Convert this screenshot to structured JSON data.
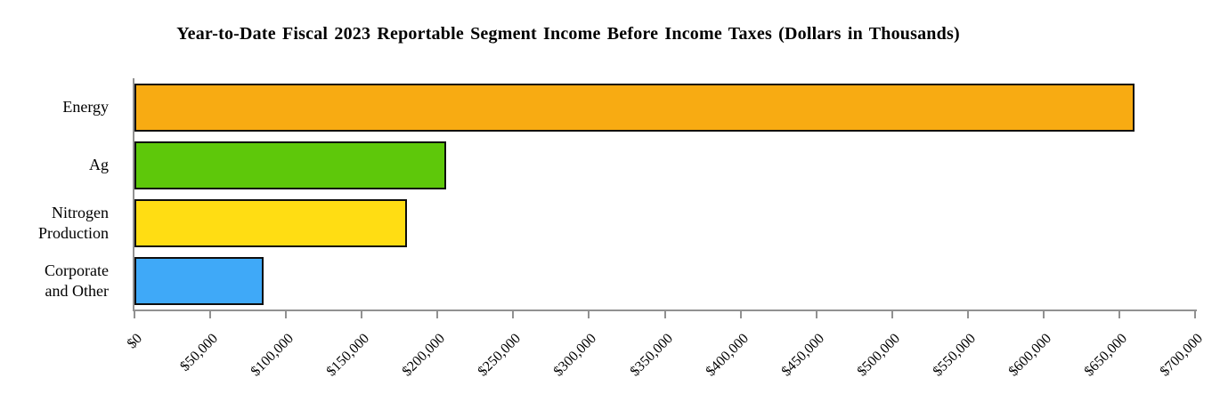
{
  "chart_data": {
    "type": "bar",
    "orientation": "horizontal",
    "title": "Year-to-Date Fiscal 2023 Reportable Segment Income Before Income Taxes (Dollars in Thousands)",
    "categories": [
      "Energy",
      "Ag",
      "Nitrogen Production",
      "Corporate and Other"
    ],
    "category_label_lines": [
      [
        "Energy"
      ],
      [
        "Ag"
      ],
      [
        "Nitrogen",
        "Production"
      ],
      [
        "Corporate",
        "and Other"
      ]
    ],
    "values": [
      660000,
      206000,
      180000,
      85000
    ],
    "value_labels": [
      "$660,000",
      "$206,000",
      "$180,000",
      "$85,000"
    ],
    "bar_colors": [
      "#F8AB12",
      "#5EC80A",
      "#FFDD13",
      "#3FA9F8"
    ],
    "bar_border_color": "#0d0d0d",
    "axis_color": "#919191",
    "xlabel": "",
    "ylabel": "",
    "xlim": [
      0,
      700000
    ],
    "x_ticks": [
      {
        "label": "$0",
        "value": 0
      },
      {
        "label": "$50,000",
        "value": 50000
      },
      {
        "label": "$100,000",
        "value": 100000
      },
      {
        "label": "$150,000",
        "value": 150000
      },
      {
        "label": "$200,000",
        "value": 200000
      },
      {
        "label": "$250,000",
        "value": 250000
      },
      {
        "label": "$300,000",
        "value": 300000
      },
      {
        "label": "$350,000",
        "value": 350000
      },
      {
        "label": "$400,000",
        "value": 400000
      },
      {
        "label": "$450,000",
        "value": 450000
      },
      {
        "label": "$500,000",
        "value": 500000
      },
      {
        "label": "$550,000",
        "value": 550000
      },
      {
        "label": "$600,000",
        "value": 600000
      },
      {
        "label": "$650,000",
        "value": 650000
      },
      {
        "label": "$700,000",
        "value": 700000
      }
    ],
    "grid": false,
    "legend": false
  }
}
